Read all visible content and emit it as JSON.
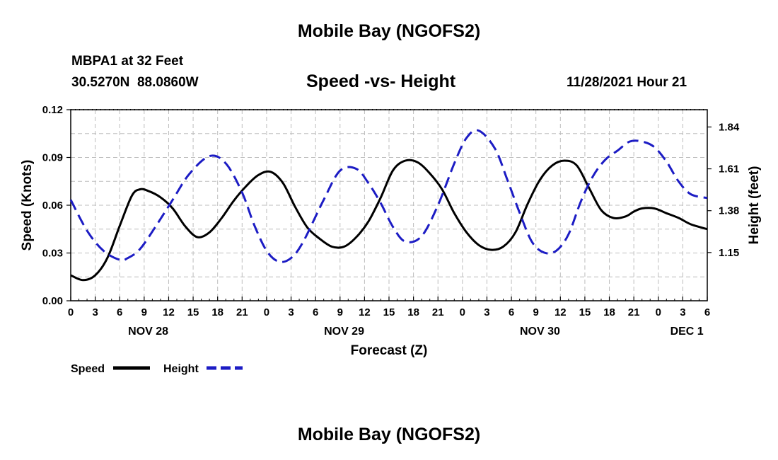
{
  "header": {
    "title": "Mobile Bay (NGOFS2)",
    "station": "MBPA1 at 32 Feet",
    "coords": "30.5270N  88.0860W",
    "date": "11/28/2021 Hour 21",
    "footer_title": "Mobile Bay (NGOFS2)"
  },
  "chart_data": {
    "type": "line",
    "title": "Speed -vs- Height",
    "xlabel": "Forecast (Z)",
    "ylabel_left": "Speed (Knots)",
    "ylabel_right": "Height (feet)",
    "x_range_hours": [
      0,
      78
    ],
    "x_ticks": [
      "0",
      "3",
      "6",
      "9",
      "12",
      "15",
      "18",
      "21",
      "0",
      "3",
      "6",
      "9",
      "12",
      "15",
      "18",
      "21",
      "0",
      "3",
      "6",
      "9",
      "12",
      "15",
      "18",
      "21",
      "0",
      "3",
      "6"
    ],
    "day_labels": [
      {
        "label": "NOV 28",
        "hour": 9.5
      },
      {
        "label": "NOV 29",
        "hour": 33.5
      },
      {
        "label": "NOV 30",
        "hour": 57.5
      },
      {
        "label": "DEC 1",
        "hour": 75.5
      }
    ],
    "y_left": {
      "range": [
        0,
        0.12
      ],
      "ticks": [
        "0.00",
        "0.03",
        "0.06",
        "0.09",
        "0.12"
      ]
    },
    "y_right": {
      "range": [
        0.885,
        1.935
      ],
      "ticks": [
        "1.15",
        "1.38",
        "1.61",
        "1.84"
      ]
    },
    "series": [
      {
        "name": "Speed",
        "axis": "left",
        "color": "#000000",
        "dash": "solid",
        "x": [
          0,
          1.5,
          3,
          4.5,
          6,
          7.5,
          8.5,
          9.5,
          11,
          12.5,
          14,
          15.5,
          17,
          18.5,
          20,
          21.5,
          23,
          24.5,
          26,
          27.5,
          29,
          30.5,
          32,
          33.5,
          35,
          36.5,
          38,
          39.5,
          41,
          42.5,
          44,
          45.5,
          47,
          48.5,
          50,
          51.5,
          53,
          54.5,
          56,
          57.5,
          59,
          60.5,
          62,
          63.5,
          65,
          66.5,
          68,
          69,
          70,
          71.5,
          73,
          74.5,
          76,
          78
        ],
        "values": [
          0.016,
          0.013,
          0.016,
          0.027,
          0.047,
          0.066,
          0.07,
          0.069,
          0.065,
          0.058,
          0.047,
          0.04,
          0.043,
          0.052,
          0.063,
          0.072,
          0.079,
          0.081,
          0.074,
          0.059,
          0.046,
          0.039,
          0.034,
          0.034,
          0.04,
          0.05,
          0.065,
          0.082,
          0.088,
          0.087,
          0.08,
          0.07,
          0.055,
          0.043,
          0.035,
          0.032,
          0.034,
          0.043,
          0.061,
          0.076,
          0.085,
          0.088,
          0.085,
          0.071,
          0.057,
          0.052,
          0.053,
          0.056,
          0.058,
          0.058,
          0.055,
          0.052,
          0.048,
          0.045
        ]
      },
      {
        "name": "Height",
        "axis": "right",
        "color": "#1c1cc4",
        "dash": "dashed",
        "x": [
          0,
          2,
          4,
          6,
          7,
          8.5,
          10.5,
          12.5,
          14.5,
          17,
          19,
          21,
          22.5,
          24,
          25.5,
          27,
          28.5,
          31,
          33,
          35,
          36.5,
          38,
          39.5,
          41,
          43,
          45,
          47,
          48.5,
          50,
          52,
          53.5,
          55,
          56.5,
          58,
          59.5,
          61,
          62.5,
          64,
          65.5,
          67,
          68.5,
          70,
          71.5,
          73,
          74.5,
          76,
          78
        ],
        "values": [
          1.44,
          1.27,
          1.16,
          1.11,
          1.12,
          1.17,
          1.3,
          1.44,
          1.58,
          1.68,
          1.64,
          1.48,
          1.3,
          1.16,
          1.1,
          1.12,
          1.21,
          1.44,
          1.6,
          1.61,
          1.53,
          1.42,
          1.29,
          1.21,
          1.24,
          1.41,
          1.64,
          1.78,
          1.82,
          1.72,
          1.55,
          1.37,
          1.21,
          1.15,
          1.16,
          1.25,
          1.43,
          1.57,
          1.66,
          1.71,
          1.76,
          1.76,
          1.73,
          1.65,
          1.54,
          1.47,
          1.45
        ]
      }
    ],
    "legend": [
      {
        "label": "Speed",
        "color": "#000000",
        "dash": "solid"
      },
      {
        "label": "Height",
        "color": "#1c1cc4",
        "dash": "dashed"
      }
    ]
  }
}
